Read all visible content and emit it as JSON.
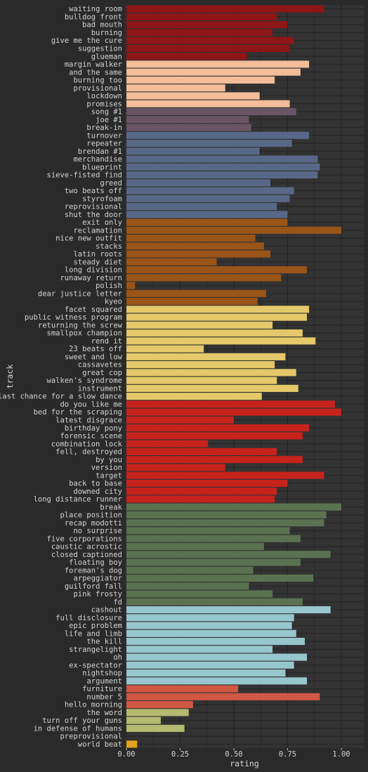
{
  "chart_data": {
    "type": "bar",
    "orientation": "horizontal",
    "xlabel": "rating",
    "ylabel": "track",
    "xlim": [
      0,
      1.0
    ],
    "xticks": [
      "0.00",
      "0.25",
      "0.50",
      "0.75",
      "1.00"
    ],
    "grid": true,
    "legend": "none",
    "colors": {
      "background": "#2a2a2a",
      "panel": "#333333",
      "grid": "#262626",
      "text": "#d4d4d4"
    },
    "series": [
      {
        "color": "#8e1616",
        "tracks": [
          {
            "track": "waiting room",
            "value": 0.92
          },
          {
            "track": "bulldog front",
            "value": 0.7
          },
          {
            "track": "bad mouth",
            "value": 0.75
          },
          {
            "track": "burning",
            "value": 0.68
          },
          {
            "track": "give me the cure",
            "value": 0.78
          },
          {
            "track": "suggestion",
            "value": 0.76
          },
          {
            "track": "glueman",
            "value": 0.56
          }
        ]
      },
      {
        "color": "#f2bd98",
        "tracks": [
          {
            "track": "margin walker",
            "value": 0.85
          },
          {
            "track": "and the same",
            "value": 0.81
          },
          {
            "track": "burning too",
            "value": 0.69
          },
          {
            "track": "provisional",
            "value": 0.46
          },
          {
            "track": "lockdown",
            "value": 0.62
          },
          {
            "track": "promises",
            "value": 0.76
          }
        ]
      },
      {
        "color": "#6a5566",
        "tracks": [
          {
            "track": "song #1",
            "value": 0.79
          },
          {
            "track": "joe #1",
            "value": 0.57
          },
          {
            "track": "break-in",
            "value": 0.58
          }
        ]
      },
      {
        "color": "#586888",
        "tracks": [
          {
            "track": "turnover",
            "value": 0.85
          },
          {
            "track": "repeater",
            "value": 0.77
          },
          {
            "track": "brendan #1",
            "value": 0.62
          },
          {
            "track": "merchandise",
            "value": 0.89
          },
          {
            "track": "blueprint",
            "value": 0.9
          },
          {
            "track": "sieve-fisted find",
            "value": 0.89
          },
          {
            "track": "greed",
            "value": 0.67
          },
          {
            "track": "two beats off",
            "value": 0.78
          },
          {
            "track": "styrofoam",
            "value": 0.76
          },
          {
            "track": "reprovisional",
            "value": 0.7
          },
          {
            "track": "shut the door",
            "value": 0.75
          }
        ]
      },
      {
        "color": "#9a5418",
        "tracks": [
          {
            "track": "exit only",
            "value": 0.75
          },
          {
            "track": "reclamation",
            "value": 1.0
          },
          {
            "track": "nice new outfit",
            "value": 0.6
          },
          {
            "track": "stacks",
            "value": 0.64
          },
          {
            "track": "latin roots",
            "value": 0.67
          },
          {
            "track": "steady diet",
            "value": 0.42
          },
          {
            "track": "long division",
            "value": 0.84
          },
          {
            "track": "runaway return",
            "value": 0.72
          },
          {
            "track": "polish",
            "value": 0.04
          },
          {
            "track": "dear justice letter",
            "value": 0.65
          },
          {
            "track": "kyeo",
            "value": 0.61
          }
        ]
      },
      {
        "color": "#e4c86a",
        "tracks": [
          {
            "track": "facet squared",
            "value": 0.85
          },
          {
            "track": "public witness program",
            "value": 0.84
          },
          {
            "track": "returning the screw",
            "value": 0.68
          },
          {
            "track": "smallpox champion",
            "value": 0.82
          },
          {
            "track": "rend it",
            "value": 0.88
          },
          {
            "track": "23 beats off",
            "value": 0.36
          },
          {
            "track": "sweet and low",
            "value": 0.74
          },
          {
            "track": "cassavetes",
            "value": 0.69
          },
          {
            "track": "great cop",
            "value": 0.79
          },
          {
            "track": "walken's syndrome",
            "value": 0.7
          },
          {
            "track": "instrument",
            "value": 0.8
          },
          {
            "track": "last chance for a slow dance",
            "value": 0.63
          }
        ]
      },
      {
        "color": "#c6231d",
        "tracks": [
          {
            "track": "do you like me",
            "value": 0.97
          },
          {
            "track": "bed for the scraping",
            "value": 1.0
          },
          {
            "track": "latest disgrace",
            "value": 0.5
          },
          {
            "track": "birthday pony",
            "value": 0.85
          },
          {
            "track": "forensic scene",
            "value": 0.82
          },
          {
            "track": "combination lock",
            "value": 0.38
          },
          {
            "track": "fell, destroyed",
            "value": 0.7
          },
          {
            "track": "by you",
            "value": 0.82
          },
          {
            "track": "version",
            "value": 0.46
          },
          {
            "track": "target",
            "value": 0.92
          },
          {
            "track": "back to base",
            "value": 0.75
          },
          {
            "track": "downed city",
            "value": 0.7
          },
          {
            "track": "long distance runner",
            "value": 0.69
          }
        ]
      },
      {
        "color": "#5b7250",
        "tracks": [
          {
            "track": "break",
            "value": 1.0
          },
          {
            "track": "place position",
            "value": 0.93
          },
          {
            "track": "recap modotti",
            "value": 0.92
          },
          {
            "track": "no surprise",
            "value": 0.76
          },
          {
            "track": "five corporations",
            "value": 0.81
          },
          {
            "track": "caustic acrostic",
            "value": 0.64
          },
          {
            "track": "closed captioned",
            "value": 0.95
          },
          {
            "track": "floating boy",
            "value": 0.81
          },
          {
            "track": "foreman's dog",
            "value": 0.59
          },
          {
            "track": "arpeggiator",
            "value": 0.87
          },
          {
            "track": "guilford fall",
            "value": 0.57
          },
          {
            "track": "pink frosty",
            "value": 0.68
          },
          {
            "track": "fd",
            "value": 0.82
          }
        ]
      },
      {
        "color": "#98c6ce",
        "tracks": [
          {
            "track": "cashout",
            "value": 0.95
          },
          {
            "track": "full disclosure",
            "value": 0.78
          },
          {
            "track": "epic problem",
            "value": 0.77
          },
          {
            "track": "life and limb",
            "value": 0.79
          },
          {
            "track": "the kill",
            "value": 0.83
          },
          {
            "track": "strangelight",
            "value": 0.68
          },
          {
            "track": "oh",
            "value": 0.84
          },
          {
            "track": "ex-spectator",
            "value": 0.78
          },
          {
            "track": "nightshop",
            "value": 0.74
          },
          {
            "track": "argument",
            "value": 0.84
          }
        ]
      },
      {
        "color": "#d05843",
        "tracks": [
          {
            "track": "furniture",
            "value": 0.52
          },
          {
            "track": "number 5",
            "value": 0.9
          },
          {
            "track": "hello morning",
            "value": 0.31
          }
        ]
      },
      {
        "color": "#b3ba71",
        "tracks": [
          {
            "track": "the word",
            "value": 0.29
          },
          {
            "track": "turn off your guns",
            "value": 0.16
          },
          {
            "track": "in defense of humans",
            "value": 0.27
          },
          {
            "track": "preprovisional",
            "value": 0.0
          }
        ]
      },
      {
        "color": "#e5a11a",
        "tracks": [
          {
            "track": "world beat",
            "value": 0.05
          }
        ]
      }
    ]
  }
}
